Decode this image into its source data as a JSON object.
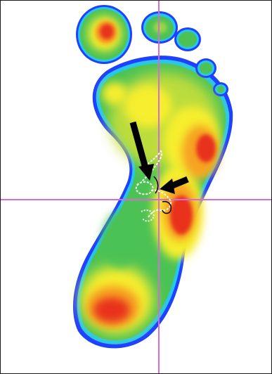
{
  "image": {
    "subject": "footprint-pressure-heatmap",
    "colors": {
      "background": "#ffffff",
      "border": "#1a1a1a",
      "outline": "#1e40ff",
      "cyan": "#28c6e8",
      "green": "#4cc255",
      "yellow_green": "#c8df3a",
      "yellow": "#f6ee2e",
      "orange": "#f6a224",
      "red": "#e8331d",
      "crosshair": "#d66ad6",
      "arrow": "#000000",
      "centroid_path": "#ffffff"
    },
    "elements": [
      "foot-sole-heatmap",
      "toe-heatmaps",
      "vertical-crosshair-line",
      "horizontal-crosshair-line",
      "arrow-pointer-upper",
      "arrow-pointer-lower",
      "center-of-pressure-trace"
    ]
  }
}
